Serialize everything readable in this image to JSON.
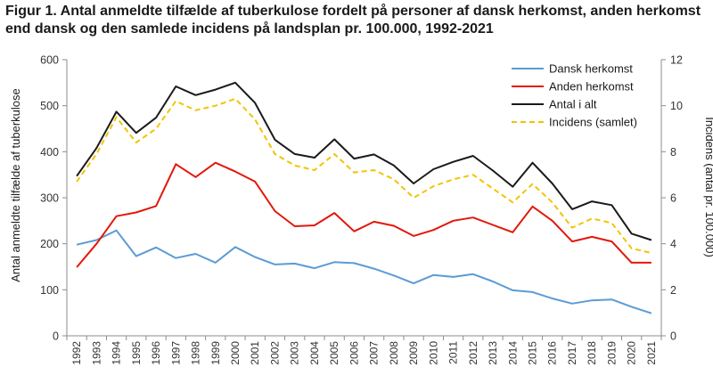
{
  "chart_data": {
    "type": "line",
    "title_lines": [
      "Figur 1. Antal anmeldte tilfælde af tuberkulose fordelt på personer af dansk herkomst,  anden herkomst",
      "end dansk og den samlede incidens på landsplan pr. 100.000, 1992-2021"
    ],
    "ylabel": "Antal anmeldte tilfælde af tuberkulose",
    "y2label": "Incidens (antal pr. 100.000)",
    "ylim": [
      0,
      600
    ],
    "y2lim": [
      0,
      12
    ],
    "yticks": [
      0,
      100,
      200,
      300,
      400,
      500,
      600
    ],
    "y2ticks": [
      0,
      2,
      4,
      6,
      8,
      10,
      12
    ],
    "legend_position": "top-right",
    "grid": false,
    "x": [
      "1992",
      "1993",
      "1994",
      "1995",
      "1996",
      "1997",
      "1998",
      "1999",
      "2000",
      "2001",
      "2002",
      "2003",
      "2004",
      "2005",
      "2006",
      "2007",
      "2008",
      "2009",
      "2010",
      "2011",
      "2012",
      "2013",
      "2014",
      "2015",
      "2016",
      "2017",
      "2018",
      "2019",
      "2020",
      "2021"
    ],
    "series": [
      {
        "name": "Dansk herkomst",
        "axis": "left",
        "color": "#5b9bd5",
        "dashed": false,
        "values": [
          198,
          208,
          229,
          173,
          192,
          169,
          178,
          159,
          193,
          171,
          155,
          157,
          147,
          160,
          158,
          146,
          131,
          114,
          132,
          128,
          134,
          118,
          99,
          95,
          81,
          70,
          77,
          79,
          63,
          49
        ]
      },
      {
        "name": "Anden herkomst",
        "axis": "left",
        "color": "#e3170a",
        "dashed": false,
        "values": [
          149,
          200,
          260,
          268,
          282,
          373,
          345,
          376,
          357,
          335,
          271,
          238,
          240,
          267,
          227,
          248,
          239,
          217,
          230,
          250,
          257,
          241,
          225,
          281,
          250,
          205,
          215,
          205,
          159,
          159
        ]
      },
      {
        "name": "Antal i alt",
        "axis": "left",
        "color": "#1a1a1a",
        "dashed": false,
        "values": [
          347,
          408,
          487,
          441,
          474,
          542,
          523,
          535,
          550,
          506,
          426,
          395,
          387,
          427,
          385,
          394,
          370,
          331,
          362,
          378,
          391,
          359,
          324,
          376,
          331,
          275,
          292,
          284,
          222,
          208
        ]
      },
      {
        "name": "Incidens (samlet)",
        "axis": "right",
        "color": "#f2c400",
        "dashed": true,
        "values": [
          6.7,
          7.9,
          9.5,
          8.4,
          9.0,
          10.2,
          9.8,
          10.0,
          10.3,
          9.4,
          7.9,
          7.4,
          7.2,
          7.9,
          7.1,
          7.2,
          6.8,
          6.0,
          6.5,
          6.8,
          7.0,
          6.4,
          5.8,
          6.6,
          5.8,
          4.7,
          5.1,
          4.9,
          3.8,
          3.6
        ]
      }
    ]
  }
}
